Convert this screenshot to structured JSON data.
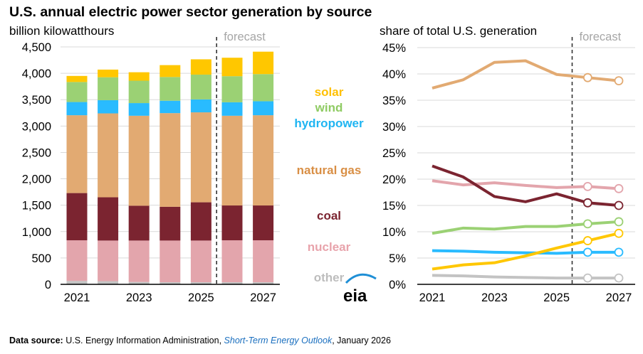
{
  "title": "U.S. annual electric power sector generation by source",
  "footer": {
    "source_label": "Data source:",
    "source_text": " U.S. Energy Information Administration, ",
    "publication": "Short-Term Energy Outlook",
    "date": ", January 2026"
  },
  "logo_text": "eia",
  "chart_data": [
    {
      "type": "bar",
      "stacked": true,
      "ylabel": "billion kilowatthours",
      "annotation": "forecast",
      "forecast_after": 2025,
      "categories": [
        2021,
        2022,
        2023,
        2024,
        2025,
        2026,
        2027
      ],
      "xtick_labels": [
        "2021",
        "2023",
        "2025",
        "2027"
      ],
      "ylim": [
        0,
        4500
      ],
      "ytick_labels": [
        "0",
        "500",
        "1,000",
        "1,500",
        "2,000",
        "2,500",
        "3,000",
        "3,500",
        "4,000",
        "4,500"
      ],
      "grid": true,
      "series": [
        {
          "name": "other",
          "color": "#C3C3C3",
          "values": [
            65,
            60,
            45,
            40,
            40,
            40,
            40
          ]
        },
        {
          "name": "nuclear",
          "color": "#E3A5AC",
          "values": [
            770,
            770,
            785,
            790,
            790,
            795,
            795
          ]
        },
        {
          "name": "coal",
          "color": "#7B2430",
          "values": [
            895,
            820,
            660,
            640,
            725,
            660,
            660
          ]
        },
        {
          "name": "natural gas",
          "color": "#E2AA72",
          "values": [
            1475,
            1590,
            1705,
            1775,
            1705,
            1700,
            1710
          ]
        },
        {
          "name": "hydropower",
          "color": "#29BBFF",
          "values": [
            250,
            250,
            240,
            235,
            245,
            255,
            265
          ]
        },
        {
          "name": "wind",
          "color": "#9BD174",
          "values": [
            380,
            435,
            425,
            450,
            470,
            495,
            515
          ]
        },
        {
          "name": "solar",
          "color": "#FFC700",
          "values": [
            115,
            145,
            160,
            225,
            290,
            350,
            425
          ]
        }
      ]
    },
    {
      "type": "line",
      "ylabel": "share of total U.S. generation",
      "annotation": "forecast",
      "forecast_after": 2025,
      "x": [
        2021,
        2022,
        2023,
        2024,
        2025,
        2026,
        2027
      ],
      "xtick_labels": [
        "2021",
        "2023",
        "2025",
        "2027"
      ],
      "ylim": [
        0,
        45
      ],
      "ytick_labels": [
        "0%",
        "5%",
        "10%",
        "15%",
        "20%",
        "25%",
        "30%",
        "35%",
        "40%",
        "45%"
      ],
      "grid": true,
      "series": [
        {
          "name": "natural gas",
          "color": "#E2AA72",
          "values": [
            37.3,
            38.9,
            42.2,
            42.5,
            39.9,
            39.3,
            38.7
          ]
        },
        {
          "name": "nuclear",
          "color": "#E3A5AC",
          "values": [
            19.7,
            18.9,
            19.3,
            18.8,
            18.4,
            18.6,
            18.2
          ]
        },
        {
          "name": "coal",
          "color": "#7B2430",
          "values": [
            22.5,
            20.4,
            16.7,
            15.7,
            17.2,
            15.5,
            15.0
          ]
        },
        {
          "name": "wind",
          "color": "#9BD174",
          "values": [
            9.7,
            10.7,
            10.5,
            11.0,
            11.0,
            11.5,
            11.9
          ]
        },
        {
          "name": "hydropower",
          "color": "#29BBFF",
          "values": [
            6.4,
            6.3,
            6.1,
            6.0,
            5.9,
            6.1,
            6.1
          ]
        },
        {
          "name": "solar",
          "color": "#FFC700",
          "values": [
            2.9,
            3.7,
            4.1,
            5.4,
            6.9,
            8.3,
            9.7
          ]
        },
        {
          "name": "other",
          "color": "#C3C3C3",
          "values": [
            1.7,
            1.6,
            1.4,
            1.3,
            1.2,
            1.2,
            1.2
          ]
        }
      ]
    }
  ],
  "legend": [
    {
      "name": "solar",
      "color": "#FFC000"
    },
    {
      "name": "wind",
      "color": "#8FCB63"
    },
    {
      "name": "hydropower",
      "color": "#1FB5F2"
    },
    {
      "name": "natural gas",
      "color": "#D98F45"
    },
    {
      "name": "coal",
      "color": "#7B2430"
    },
    {
      "name": "nuclear",
      "color": "#E8A3AB"
    },
    {
      "name": "other",
      "color": "#BDBDBD"
    }
  ]
}
